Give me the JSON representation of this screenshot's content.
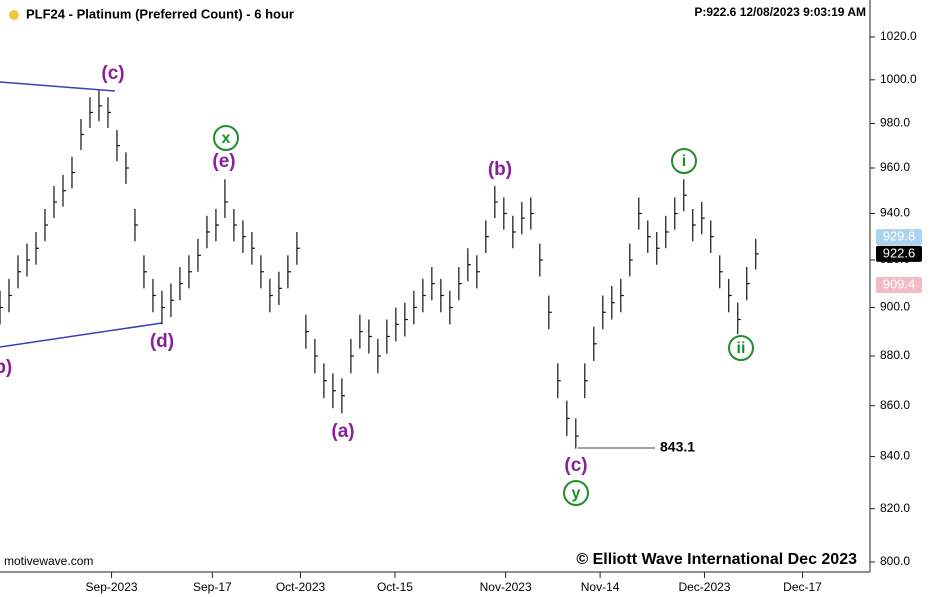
{
  "chart_data": {
    "type": "ohlc",
    "title": "PLF24 - Platinum (Preferred Count) - 6 hour",
    "status": "P:922.6  12/08/2023 9:03:19 AM",
    "source": "motivewave.com",
    "copyright": "© Elliott Wave International Dec 2023",
    "log_scale": true,
    "color": "#111111",
    "xlim": [
      0,
      96.7
    ],
    "xticks": [
      {
        "value": 12.4,
        "label": "Sep-2023"
      },
      {
        "value": 23.6,
        "label": "Sep-17"
      },
      {
        "value": 33.4,
        "label": "Oct-2023"
      },
      {
        "value": 43.9,
        "label": "Oct-15"
      },
      {
        "value": 56.2,
        "label": "Nov-2023"
      },
      {
        "value": 66.7,
        "label": "Nov-14"
      },
      {
        "value": 78.3,
        "label": "Dec-2023"
      },
      {
        "value": 89.2,
        "label": "Dec-17"
      }
    ],
    "ylim": [
      800,
      1020
    ],
    "yticks": [
      {
        "value": 800,
        "label": "800.0"
      },
      {
        "value": 820,
        "label": "820.0"
      },
      {
        "value": 840,
        "label": "840.0"
      },
      {
        "value": 860,
        "label": "860.0"
      },
      {
        "value": 880,
        "label": "880.0"
      },
      {
        "value": 900,
        "label": "900.0"
      },
      {
        "value": 920,
        "label": "920.0"
      },
      {
        "value": 940,
        "label": "940.0"
      },
      {
        "value": 960,
        "label": "960.0"
      },
      {
        "value": 980,
        "label": "980.0"
      },
      {
        "value": 1000,
        "label": "1000.0"
      },
      {
        "value": 1020,
        "label": "1020.0"
      }
    ],
    "high": [
      907,
      912,
      922,
      927,
      932,
      942,
      952,
      957,
      965,
      982,
      992,
      995,
      992,
      977,
      967,
      942,
      922,
      912,
      907,
      910,
      917,
      922,
      929,
      939,
      942,
      955,
      942,
      937,
      932,
      922,
      912,
      915,
      922,
      932,
      897,
      887,
      877,
      873,
      871,
      887,
      897,
      895,
      887,
      895,
      900,
      902,
      907,
      912,
      917,
      912,
      907,
      917,
      925,
      922,
      937,
      952,
      947,
      939,
      945,
      947,
      927,
      905,
      877,
      862,
      855,
      877,
      892,
      905,
      909,
      912,
      927,
      947,
      937,
      932,
      939,
      947,
      955,
      942,
      945,
      937,
      922,
      912,
      902,
      917,
      929
    ],
    "low": [
      893,
      898,
      908,
      913,
      918,
      928,
      938,
      943,
      951,
      968,
      978,
      981,
      978,
      963,
      953,
      928,
      908,
      898,
      893,
      896,
      903,
      908,
      915,
      925,
      928,
      938,
      928,
      923,
      918,
      908,
      898,
      901,
      908,
      918,
      883,
      873,
      863,
      859,
      857,
      873,
      883,
      881,
      873,
      881,
      886,
      888,
      893,
      898,
      903,
      898,
      893,
      903,
      911,
      908,
      923,
      938,
      933,
      925,
      931,
      933,
      913,
      891,
      863,
      848,
      843.1,
      863,
      878,
      891,
      895,
      898,
      913,
      933,
      923,
      918,
      925,
      933,
      941,
      928,
      931,
      923,
      908,
      898,
      889,
      903,
      916
    ],
    "close": [
      900,
      905,
      915,
      920,
      925,
      935,
      945,
      950,
      958,
      975,
      985,
      988,
      985,
      970,
      960,
      935,
      915,
      905,
      900,
      903,
      910,
      915,
      922,
      932,
      935,
      945,
      935,
      930,
      925,
      915,
      905,
      908,
      915,
      925,
      890,
      880,
      870,
      866,
      864,
      880,
      890,
      888,
      880,
      888,
      893,
      895,
      900,
      905,
      910,
      905,
      900,
      910,
      918,
      915,
      930,
      945,
      940,
      932,
      938,
      940,
      920,
      898,
      870,
      855,
      848,
      870,
      885,
      898,
      902,
      905,
      920,
      940,
      930,
      925,
      932,
      940,
      948,
      935,
      938,
      930,
      915,
      905,
      895,
      910,
      922.6
    ],
    "low_label": "843.1",
    "price_tags": [
      {
        "value": 929.8,
        "label": "929.8",
        "color": "#a9d3ee"
      },
      {
        "value": 922.6,
        "label": "922.6",
        "color": "#000000"
      },
      {
        "value": 909.4,
        "label": "909.4",
        "color": "#f2bcc4"
      }
    ],
    "wave_labels": [
      "(c)",
      "x",
      "(e)",
      "(b)",
      "i",
      "(d)",
      "(a)",
      "(c)",
      "y",
      "ii",
      "(b)"
    ]
  }
}
